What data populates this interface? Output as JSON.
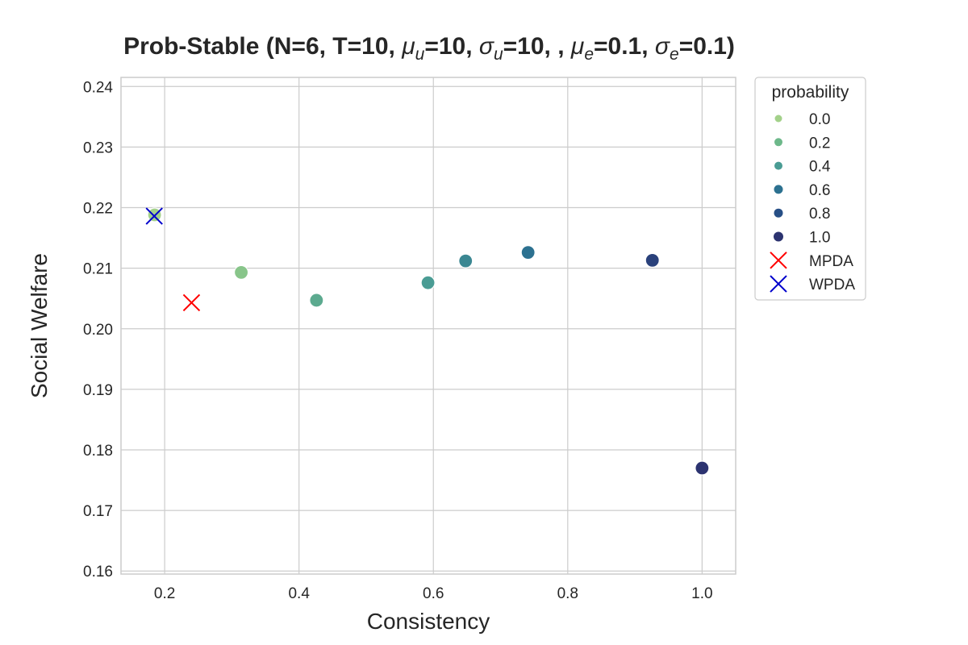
{
  "chart_data": {
    "type": "scatter",
    "title_parts": [
      {
        "t": "Prob-Stable (N=6, T=10, ",
        "italic": false
      },
      {
        "t": "μ",
        "italic": true
      },
      {
        "t": "u",
        "italic": true,
        "sub": true
      },
      {
        "t": "=10, ",
        "italic": false
      },
      {
        "t": "σ",
        "italic": true
      },
      {
        "t": "u",
        "italic": true,
        "sub": true
      },
      {
        "t": "=10, , ",
        "italic": false
      },
      {
        "t": "μ",
        "italic": true
      },
      {
        "t": "e",
        "italic": true,
        "sub": true
      },
      {
        "t": "=0.1, ",
        "italic": false
      },
      {
        "t": "σ",
        "italic": true
      },
      {
        "t": "e",
        "italic": true,
        "sub": true
      },
      {
        "t": "=0.1)",
        "italic": false
      }
    ],
    "xlabel": "Consistency",
    "ylabel": "Social Welfare",
    "xlim": [
      0.135,
      1.05
    ],
    "ylim": [
      0.1595,
      0.2415
    ],
    "xticks": [
      0.2,
      0.4,
      0.6,
      0.8,
      1.0
    ],
    "xtick_labels": [
      "0.2",
      "0.4",
      "0.6",
      "0.8",
      "1.0"
    ],
    "yticks": [
      0.16,
      0.17,
      0.18,
      0.19,
      0.2,
      0.21,
      0.22,
      0.23,
      0.24
    ],
    "ytick_labels": [
      "0.16",
      "0.17",
      "0.18",
      "0.19",
      "0.20",
      "0.21",
      "0.22",
      "0.23",
      "0.24"
    ],
    "grid": true,
    "legend_position": "outside-right-top",
    "points": [
      {
        "probability": 0.0,
        "x": 0.185,
        "y": 0.2188
      },
      {
        "probability": 0.1,
        "x": 0.314,
        "y": 0.2093
      },
      {
        "probability": 0.3,
        "x": 0.426,
        "y": 0.2047
      },
      {
        "probability": 0.4,
        "x": 0.592,
        "y": 0.2076
      },
      {
        "probability": 0.5,
        "x": 0.648,
        "y": 0.2112
      },
      {
        "probability": 0.6,
        "x": 0.741,
        "y": 0.2126
      },
      {
        "probability": 0.9,
        "x": 0.926,
        "y": 0.2113
      },
      {
        "probability": 1.0,
        "x": 1.0,
        "y": 0.177
      }
    ],
    "markers": [
      {
        "name": "MPDA",
        "x": 0.24,
        "y": 0.2043,
        "color": "#ff0000"
      },
      {
        "name": "WPDA",
        "x": 0.1845,
        "y": 0.2186,
        "color": "#0000cc"
      }
    ],
    "legend": {
      "title": "probability",
      "entries": [
        {
          "label": "0.0",
          "value": 0.0
        },
        {
          "label": "0.2",
          "value": 0.2
        },
        {
          "label": "0.4",
          "value": 0.4
        },
        {
          "label": "0.6",
          "value": 0.6
        },
        {
          "label": "0.8",
          "value": 0.8
        },
        {
          "label": "1.0",
          "value": 1.0
        }
      ],
      "marker_entries": [
        {
          "label": "MPDA",
          "color": "#ff0000"
        },
        {
          "label": "WPDA",
          "color": "#0000cc"
        }
      ]
    },
    "colormap": [
      "#a3d18a",
      "#6db88a",
      "#4a9c94",
      "#2c7190",
      "#274f86",
      "#2c3370"
    ]
  }
}
